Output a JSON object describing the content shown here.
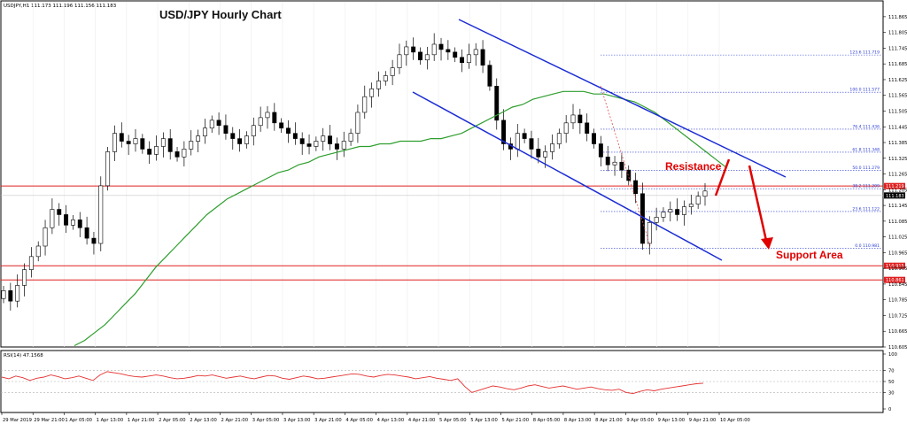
{
  "symbol_header": "USDJPY,H1  111.173 111.196 111.156 111.183",
  "chart_data": {
    "type": "candlestick",
    "title": "USD/JPY Hourly Chart",
    "ylim": [
      110.605,
      111.895
    ],
    "y_ticks": [
      "111.865",
      "111.805",
      "111.745",
      "111.685",
      "111.625",
      "111.565",
      "111.505",
      "111.445",
      "111.385",
      "111.325",
      "111.265",
      "111.205",
      "111.145",
      "111.085",
      "111.025",
      "110.965",
      "110.905",
      "110.845",
      "110.785",
      "110.725",
      "110.665",
      "110.605"
    ],
    "x_ticks": [
      "29 Mar 2019",
      "29 Mar 21:00",
      "1 Apr 05:00",
      "1 Apr 13:00",
      "1 Apr 21:00",
      "2 Apr 05:00",
      "2 Apr 13:00",
      "2 Apr 21:00",
      "3 Apr 05:00",
      "3 Apr 13:00",
      "3 Apr 21:00",
      "4 Apr 05:00",
      "4 Apr 13:00",
      "4 Apr 21:00",
      "5 Apr 05:00",
      "5 Apr 13:00",
      "5 Apr 21:00",
      "8 Apr 05:00",
      "8 Apr 13:00",
      "8 Apr 21:00",
      "9 Apr 05:00",
      "9 Apr 13:00",
      "9 Apr 21:00",
      "10 Apr 05:00"
    ],
    "closes": [
      110.82,
      110.78,
      110.84,
      110.9,
      110.95,
      110.99,
      111.06,
      111.13,
      111.11,
      111.07,
      111.09,
      111.06,
      111.02,
      111.0,
      111.22,
      111.35,
      111.42,
      111.39,
      111.38,
      111.4,
      111.36,
      111.34,
      111.37,
      111.4,
      111.35,
      111.33,
      111.36,
      111.39,
      111.41,
      111.44,
      111.47,
      111.45,
      111.42,
      111.4,
      111.38,
      111.41,
      111.45,
      111.48,
      111.5,
      111.46,
      111.44,
      111.42,
      111.4,
      111.38,
      111.37,
      111.39,
      111.41,
      111.38,
      111.36,
      111.39,
      111.42,
      111.5,
      111.56,
      111.59,
      111.62,
      111.64,
      111.67,
      111.72,
      111.75,
      111.73,
      111.7,
      111.72,
      111.76,
      111.74,
      111.73,
      111.71,
      111.69,
      111.72,
      111.74,
      111.68,
      111.6,
      111.47,
      111.38,
      111.36,
      111.42,
      111.4,
      111.36,
      111.33,
      111.35,
      111.38,
      111.42,
      111.46,
      111.49,
      111.46,
      111.42,
      111.38,
      111.33,
      111.3,
      111.31,
      111.28,
      111.24,
      111.19,
      111.0,
      111.08,
      111.1,
      111.12,
      111.13,
      111.11,
      111.14,
      111.15,
      111.18,
      111.2
    ],
    "ma": {
      "name": "green moving average",
      "color": "#2e9e2e",
      "values": [
        110.61,
        110.63,
        110.66,
        110.69,
        110.73,
        110.77,
        110.81,
        110.86,
        110.91,
        110.95,
        110.99,
        111.03,
        111.07,
        111.11,
        111.14,
        111.17,
        111.19,
        111.21,
        111.23,
        111.25,
        111.27,
        111.28,
        111.3,
        111.31,
        111.33,
        111.34,
        111.35,
        111.36,
        111.37,
        111.37,
        111.38,
        111.38,
        111.39,
        111.39,
        111.39,
        111.4,
        111.4,
        111.41,
        111.42,
        111.44,
        111.46,
        111.48,
        111.5,
        111.52,
        111.53,
        111.55,
        111.56,
        111.57,
        111.58,
        111.58,
        111.58,
        111.57,
        111.57,
        111.56,
        111.55,
        111.54,
        111.52,
        111.5,
        111.47,
        111.44,
        111.41,
        111.38,
        111.35,
        111.32,
        111.29
      ]
    },
    "levels": [
      {
        "label": "111.219",
        "value": 111.219,
        "color": "#e02020"
      },
      {
        "label": "110.915",
        "value": 110.915,
        "color": "#e02020"
      },
      {
        "label": "110.861",
        "value": 110.861,
        "color": "#e02020"
      }
    ],
    "current_price": {
      "label": "111.183",
      "value": 111.183
    },
    "fibonacci": [
      {
        "label": "123.6 111.719",
        "value": 111.719
      },
      {
        "label": "100.0 111.577",
        "value": 111.577
      },
      {
        "label": "76.4 111.436",
        "value": 111.436
      },
      {
        "label": "61.8 111.348",
        "value": 111.348
      },
      {
        "label": "50.0 111.279",
        "value": 111.279
      },
      {
        "label": "38.2 111.209",
        "value": 111.209
      },
      {
        "label": "23.6 111.122",
        "value": 111.122
      },
      {
        "label": "0.0 110.981",
        "value": 110.981
      }
    ],
    "annotations": {
      "resistance": "Resistance",
      "support": "Support Area"
    },
    "rsi": {
      "label": "RSI(14) 47.1568",
      "ylim": [
        0,
        100
      ],
      "ticks": [
        "100",
        "70",
        "50",
        "30",
        "0"
      ],
      "values": [
        58,
        55,
        60,
        57,
        52,
        56,
        58,
        62,
        59,
        55,
        57,
        60,
        56,
        52,
        62,
        68,
        66,
        64,
        61,
        59,
        58,
        60,
        62,
        60,
        57,
        55,
        56,
        58,
        61,
        60,
        62,
        59,
        56,
        58,
        60,
        57,
        55,
        58,
        61,
        60,
        56,
        54,
        57,
        60,
        58,
        55,
        56,
        58,
        60,
        62,
        64,
        63,
        60,
        58,
        61,
        63,
        62,
        60,
        58,
        55,
        57,
        59,
        56,
        54,
        52,
        55,
        41,
        30,
        34,
        38,
        42,
        40,
        37,
        35,
        38,
        42,
        44,
        41,
        38,
        40,
        42,
        39,
        36,
        38,
        40,
        37,
        35,
        34,
        36,
        30,
        28,
        32,
        35,
        33,
        36,
        38,
        40,
        42,
        44,
        46,
        47
      ]
    }
  }
}
